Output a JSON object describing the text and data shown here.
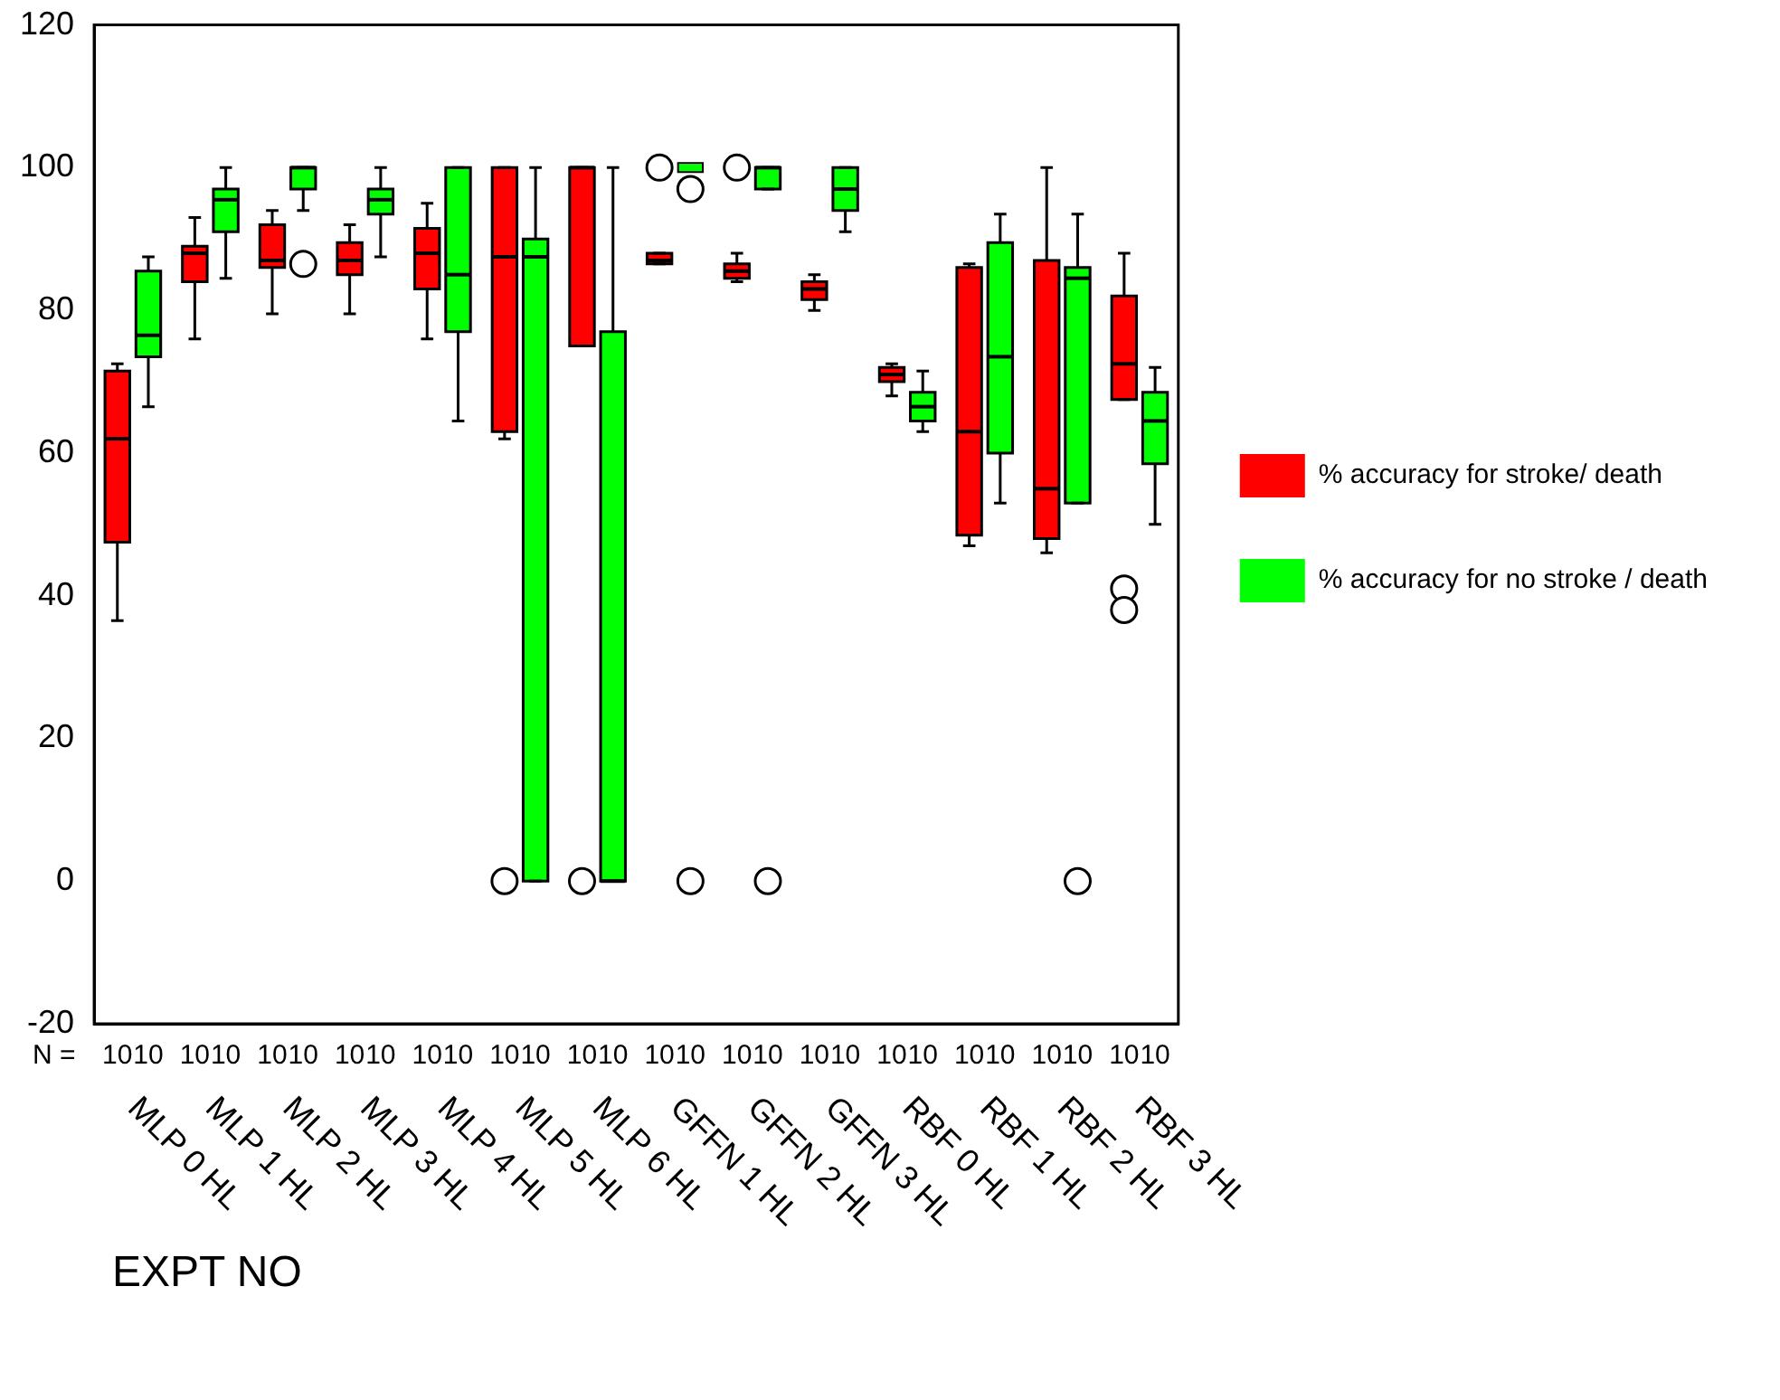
{
  "chart_data": {
    "type": "box",
    "xlabel": "EXPT NO",
    "legend": "right",
    "ylim": [
      -20,
      120
    ],
    "yticks": [
      -20,
      0,
      20,
      40,
      60,
      80,
      100,
      120
    ],
    "categories": [
      "MLP 0 HL",
      "MLP 1 HL",
      "MLP 2 HL",
      "MLP 3 HL",
      "MLP 4 HL",
      "MLP 5 HL",
      "MLP 6 HL",
      "GFFN 1 HL",
      "GFFN 2 HL",
      "GFFN 3 HL",
      "RBF 0 HL",
      "RBF 1 HL",
      "RBF 2 HL",
      "RBF 3 HL"
    ],
    "annotations": [
      "N =",
      "10",
      "10",
      "10",
      "10",
      "10",
      "10",
      "10",
      "10",
      "10",
      "10",
      "10",
      "10",
      "10",
      "10",
      "10",
      "10",
      "10",
      "10",
      "10",
      "10",
      "10",
      "10",
      "10",
      "10",
      "10",
      "10",
      "10",
      "10"
    ],
    "series": [
      {
        "name": "% accuracy for stroke/ death",
        "color": "#ff0000",
        "boxes": [
          {
            "low": 36.5,
            "q1": 47.5,
            "median": 62,
            "q3": 71.5,
            "high": 72.5
          },
          {
            "low": 76,
            "q1": 84,
            "median": 88,
            "q3": 89,
            "high": 93
          },
          {
            "low": 79.5,
            "q1": 86,
            "median": 87,
            "q3": 92,
            "high": 94
          },
          {
            "low": 79.5,
            "q1": 85,
            "median": 87,
            "q3": 89.5,
            "high": 92
          },
          {
            "low": 76,
            "q1": 83,
            "median": 88,
            "q3": 91.5,
            "high": 95
          },
          {
            "low": 62,
            "q1": 63,
            "median": 87.5,
            "q3": 100,
            "high": 100,
            "outliers": [
              0
            ]
          },
          {
            "low": 75,
            "q1": 75,
            "median": 100,
            "q3": 100,
            "high": 100,
            "outliers": [
              0
            ]
          },
          {
            "low": 86.5,
            "q1": 86.5,
            "median": 87,
            "q3": 88,
            "high": 88,
            "outliers": [
              100
            ]
          },
          {
            "low": 84,
            "q1": 84.5,
            "median": 85.5,
            "q3": 86.5,
            "high": 88,
            "outliers": [
              100
            ]
          },
          {
            "low": 80,
            "q1": 81.5,
            "median": 83,
            "q3": 84,
            "high": 85
          },
          {
            "low": 68,
            "q1": 70,
            "median": 71,
            "q3": 72,
            "high": 72.5
          },
          {
            "low": 47,
            "q1": 48.5,
            "median": 63,
            "q3": 86,
            "high": 86.5
          },
          {
            "low": 46,
            "q1": 48,
            "median": 55,
            "q3": 87,
            "high": 100
          },
          {
            "low": 67.5,
            "q1": 67.5,
            "median": 72.5,
            "q3": 82,
            "high": 88,
            "outliers": [
              41,
              38
            ]
          }
        ]
      },
      {
        "name": "% accuracy for no stroke / death",
        "color": "#00ff00",
        "boxes": [
          {
            "low": 66.5,
            "q1": 73.5,
            "median": 76.5,
            "q3": 85.5,
            "high": 87.5
          },
          {
            "low": 84.5,
            "q1": 91,
            "median": 95.5,
            "q3": 97,
            "high": 100
          },
          {
            "low": 94,
            "q1": 97,
            "median": 100,
            "q3": 100,
            "high": 100,
            "outliers": [
              86.5
            ]
          },
          {
            "low": 87.5,
            "q1": 93.5,
            "median": 95.5,
            "q3": 97,
            "high": 100
          },
          {
            "low": 64.5,
            "q1": 77,
            "median": 85,
            "q3": 100,
            "high": 100
          },
          {
            "low": 0,
            "q1": 0,
            "median": 87.5,
            "q3": 90,
            "high": 100
          },
          {
            "low": 0,
            "q1": 0,
            "median": 0,
            "q3": 77,
            "high": 100
          },
          {
            "low": 100,
            "q1": 100,
            "median": 100,
            "q3": 100,
            "high": 100,
            "outliers": [
              97,
              0
            ]
          },
          {
            "low": 97,
            "q1": 97,
            "median": 100,
            "q3": 100,
            "high": 100,
            "outliers": [
              0
            ]
          },
          {
            "low": 91,
            "q1": 94,
            "median": 97,
            "q3": 100,
            "high": 100
          },
          {
            "low": 63,
            "q1": 64.5,
            "median": 66.5,
            "q3": 68.5,
            "high": 71.5
          },
          {
            "low": 53,
            "q1": 60,
            "median": 73.5,
            "q3": 89.5,
            "high": 93.5
          },
          {
            "low": 53,
            "q1": 53,
            "median": 84.5,
            "q3": 86,
            "high": 93.5,
            "outliers": [
              0
            ]
          },
          {
            "low": 50,
            "q1": 58.5,
            "median": 64.5,
            "q3": 68.5,
            "high": 72
          }
        ]
      }
    ]
  }
}
